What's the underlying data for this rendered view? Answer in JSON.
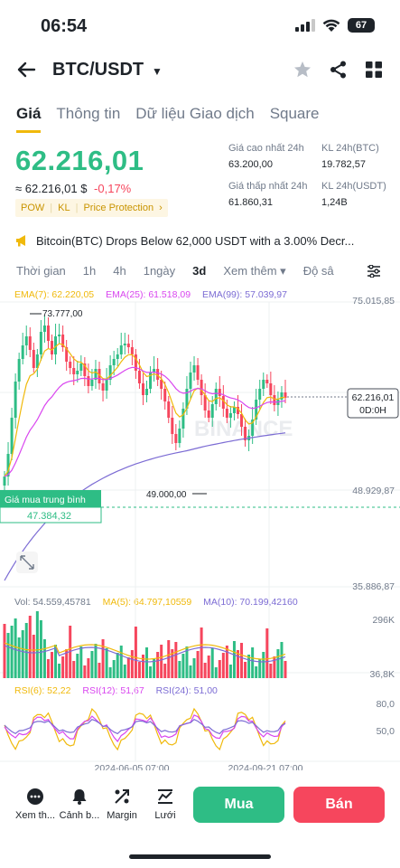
{
  "status_bar": {
    "time": "06:54",
    "battery": "67"
  },
  "header": {
    "pair": "BTC/USDT"
  },
  "tabs": [
    "Giá",
    "Thông tin",
    "Dữ liệu Giao dịch",
    "Square"
  ],
  "price": {
    "last": "62.216,01",
    "fiat": "≈ 62.216,01 $",
    "change": "-0,17%",
    "tags": [
      "POW",
      "KL",
      "Price Protection"
    ]
  },
  "stats": {
    "high_label": "Giá cao nhất 24h",
    "high_value": "63.200,00",
    "low_label": "Giá thấp nhất 24h",
    "low_value": "61.860,31",
    "vol_btc_label": "KL 24h(BTC)",
    "vol_btc_value": "19.782,57",
    "vol_usdt_label": "KL 24h(USDT)",
    "vol_usdt_value": "1,24B"
  },
  "news": "Bitcoin(BTC) Drops Below 62,000 USDT with a 3.00% Decr...",
  "intervals": [
    "Thời gian",
    "1h",
    "4h",
    "1ngày",
    "3d",
    "Xem thêm",
    "Độ sâ"
  ],
  "indicators": {
    "ema7": "EMA(7): 62.220,05",
    "ema25": "EMA(25): 61.518,09",
    "ema99": "EMA(99): 57.039,97",
    "vol": "Vol: 54.559,45781",
    "ma5": "MA(5): 64.797,10559",
    "ma10": "MA(10): 70.199,42160",
    "rsi6": "RSI(6): 52,22",
    "rsi12": "RSI(12): 51,67",
    "rsi24": "RSI(24): 51,00"
  },
  "chart_labels": {
    "y_top": "75.015,85",
    "y_mid": "48.929,87",
    "y_low": "35.886,87",
    "high_marker": "73.777,00",
    "low_marker": "49.000,00",
    "current_price": "62.216,01",
    "countdown": "0D:0H",
    "avg_buy_label": "Giá mua trung bình",
    "avg_buy_value": "47.384,32",
    "vol_top": "296K",
    "vol_low": "36,8K",
    "rsi_80": "80,0",
    "rsi_50": "50,0",
    "date1": "2024-06-05 07:00",
    "date2": "2024-09-21 07:00",
    "watermark": "BINANCE"
  },
  "bottom_bar": {
    "more": "Xem th...",
    "alert": "Cảnh b...",
    "margin": "Margin",
    "grid": "Lưới",
    "buy": "Mua",
    "sell": "Bán"
  },
  "colors": {
    "up": "#2ebd85",
    "down": "#f6465d",
    "accent": "#f0b90b",
    "ema7": "#f0b90b",
    "ema25": "#d946ef",
    "ema99": "#7c6cd4"
  }
}
